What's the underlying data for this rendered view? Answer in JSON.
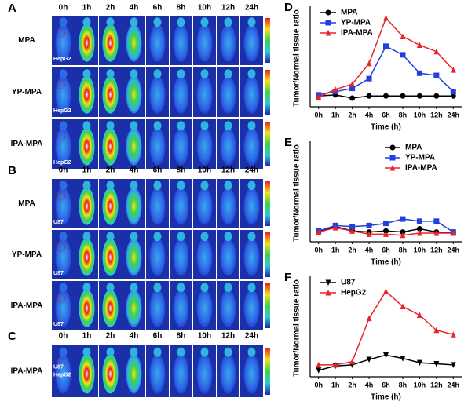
{
  "panels": [
    {
      "label": "A",
      "times": [
        "0h",
        "1h",
        "2h",
        "4h",
        "6h",
        "8h",
        "10h",
        "12h",
        "24h"
      ],
      "rows": [
        {
          "label": "MPA",
          "tags": [
            "HepG2"
          ]
        },
        {
          "label": "YP-MPA",
          "tags": [
            "HepG2"
          ]
        },
        {
          "label": "IPA-MPA",
          "tags": [
            "HepG2"
          ]
        }
      ]
    },
    {
      "label": "B",
      "times": [
        "0h",
        "1h",
        "2h",
        "4h",
        "6h",
        "8h",
        "10h",
        "12h",
        "24h"
      ],
      "rows": [
        {
          "label": "MPA",
          "tags": [
            "U87"
          ]
        },
        {
          "label": "YP-MPA",
          "tags": [
            "U87"
          ]
        },
        {
          "label": "IPA-MPA",
          "tags": [
            "U87"
          ]
        }
      ]
    },
    {
      "label": "C",
      "times": [
        "0h",
        "1h",
        "2h",
        "4h",
        "6h",
        "8h",
        "10h",
        "12h",
        "24h"
      ],
      "rows": [
        {
          "label": "IPA-MPA",
          "tags": [
            "U87",
            "HepG2"
          ]
        }
      ]
    }
  ],
  "chart_data": [
    {
      "type": "line",
      "label": "D",
      "ylabel": "Tumor/Normal tissue ratio",
      "xlabel": "Time (h)",
      "categories": [
        "0h",
        "1h",
        "2h",
        "4h",
        "6h",
        "8h",
        "10h",
        "12h",
        "24h"
      ],
      "ylim": [
        0.5,
        5
      ],
      "legend": "upper left",
      "series": [
        {
          "name": "MPA",
          "color": "#000000",
          "marker": "circle",
          "values": [
            1.0,
            1.05,
            0.9,
            1.0,
            1.0,
            1.0,
            1.0,
            1.0,
            1.0
          ]
        },
        {
          "name": "YP-MPA",
          "color": "#1f3fe0",
          "marker": "square",
          "values": [
            1.05,
            1.2,
            1.35,
            1.8,
            3.3,
            2.9,
            2.05,
            1.95,
            1.2
          ]
        },
        {
          "name": "IPA-MPA",
          "color": "#e8232a",
          "marker": "triangle",
          "values": [
            0.95,
            1.3,
            1.55,
            2.5,
            4.6,
            3.75,
            3.35,
            3.05,
            2.2
          ]
        }
      ]
    },
    {
      "type": "line",
      "label": "E",
      "ylabel": "Tumor/Normal tissue ratio",
      "xlabel": "Time (h)",
      "categories": [
        "0h",
        "1h",
        "2h",
        "4h",
        "6h",
        "8h",
        "10h",
        "12h",
        "24h"
      ],
      "ylim": [
        0.5,
        5
      ],
      "legend": "upper right",
      "series": [
        {
          "name": "MPA",
          "color": "#000000",
          "marker": "circle",
          "values": [
            0.95,
            1.2,
            1.0,
            0.95,
            1.0,
            0.95,
            1.1,
            0.95,
            0.9
          ]
        },
        {
          "name": "YP-MPA",
          "color": "#1f3fe0",
          "marker": "square",
          "values": [
            1.0,
            1.25,
            1.2,
            1.25,
            1.35,
            1.55,
            1.45,
            1.45,
            0.95
          ]
        },
        {
          "name": "IPA-MPA",
          "color": "#e8232a",
          "marker": "triangle",
          "values": [
            0.95,
            1.15,
            1.0,
            0.85,
            0.85,
            0.8,
            0.9,
            0.9,
            0.9
          ]
        }
      ]
    },
    {
      "type": "line",
      "label": "F",
      "ylabel": "Tumor/Normal tissue ratio",
      "xlabel": "Time (h)",
      "categories": [
        "0h",
        "1h",
        "2h",
        "4h",
        "6h",
        "8h",
        "10h",
        "12h",
        "24h"
      ],
      "ylim": [
        0.5,
        5
      ],
      "legend": "upper left",
      "series": [
        {
          "name": "U87",
          "color": "#000000",
          "marker": "down-triangle",
          "values": [
            0.8,
            1.0,
            1.05,
            1.3,
            1.5,
            1.35,
            1.15,
            1.1,
            1.05
          ]
        },
        {
          "name": "HepG2",
          "color": "#e8232a",
          "marker": "triangle",
          "values": [
            1.05,
            1.05,
            1.2,
            3.2,
            4.45,
            3.75,
            3.35,
            2.65,
            2.45
          ]
        }
      ]
    }
  ]
}
